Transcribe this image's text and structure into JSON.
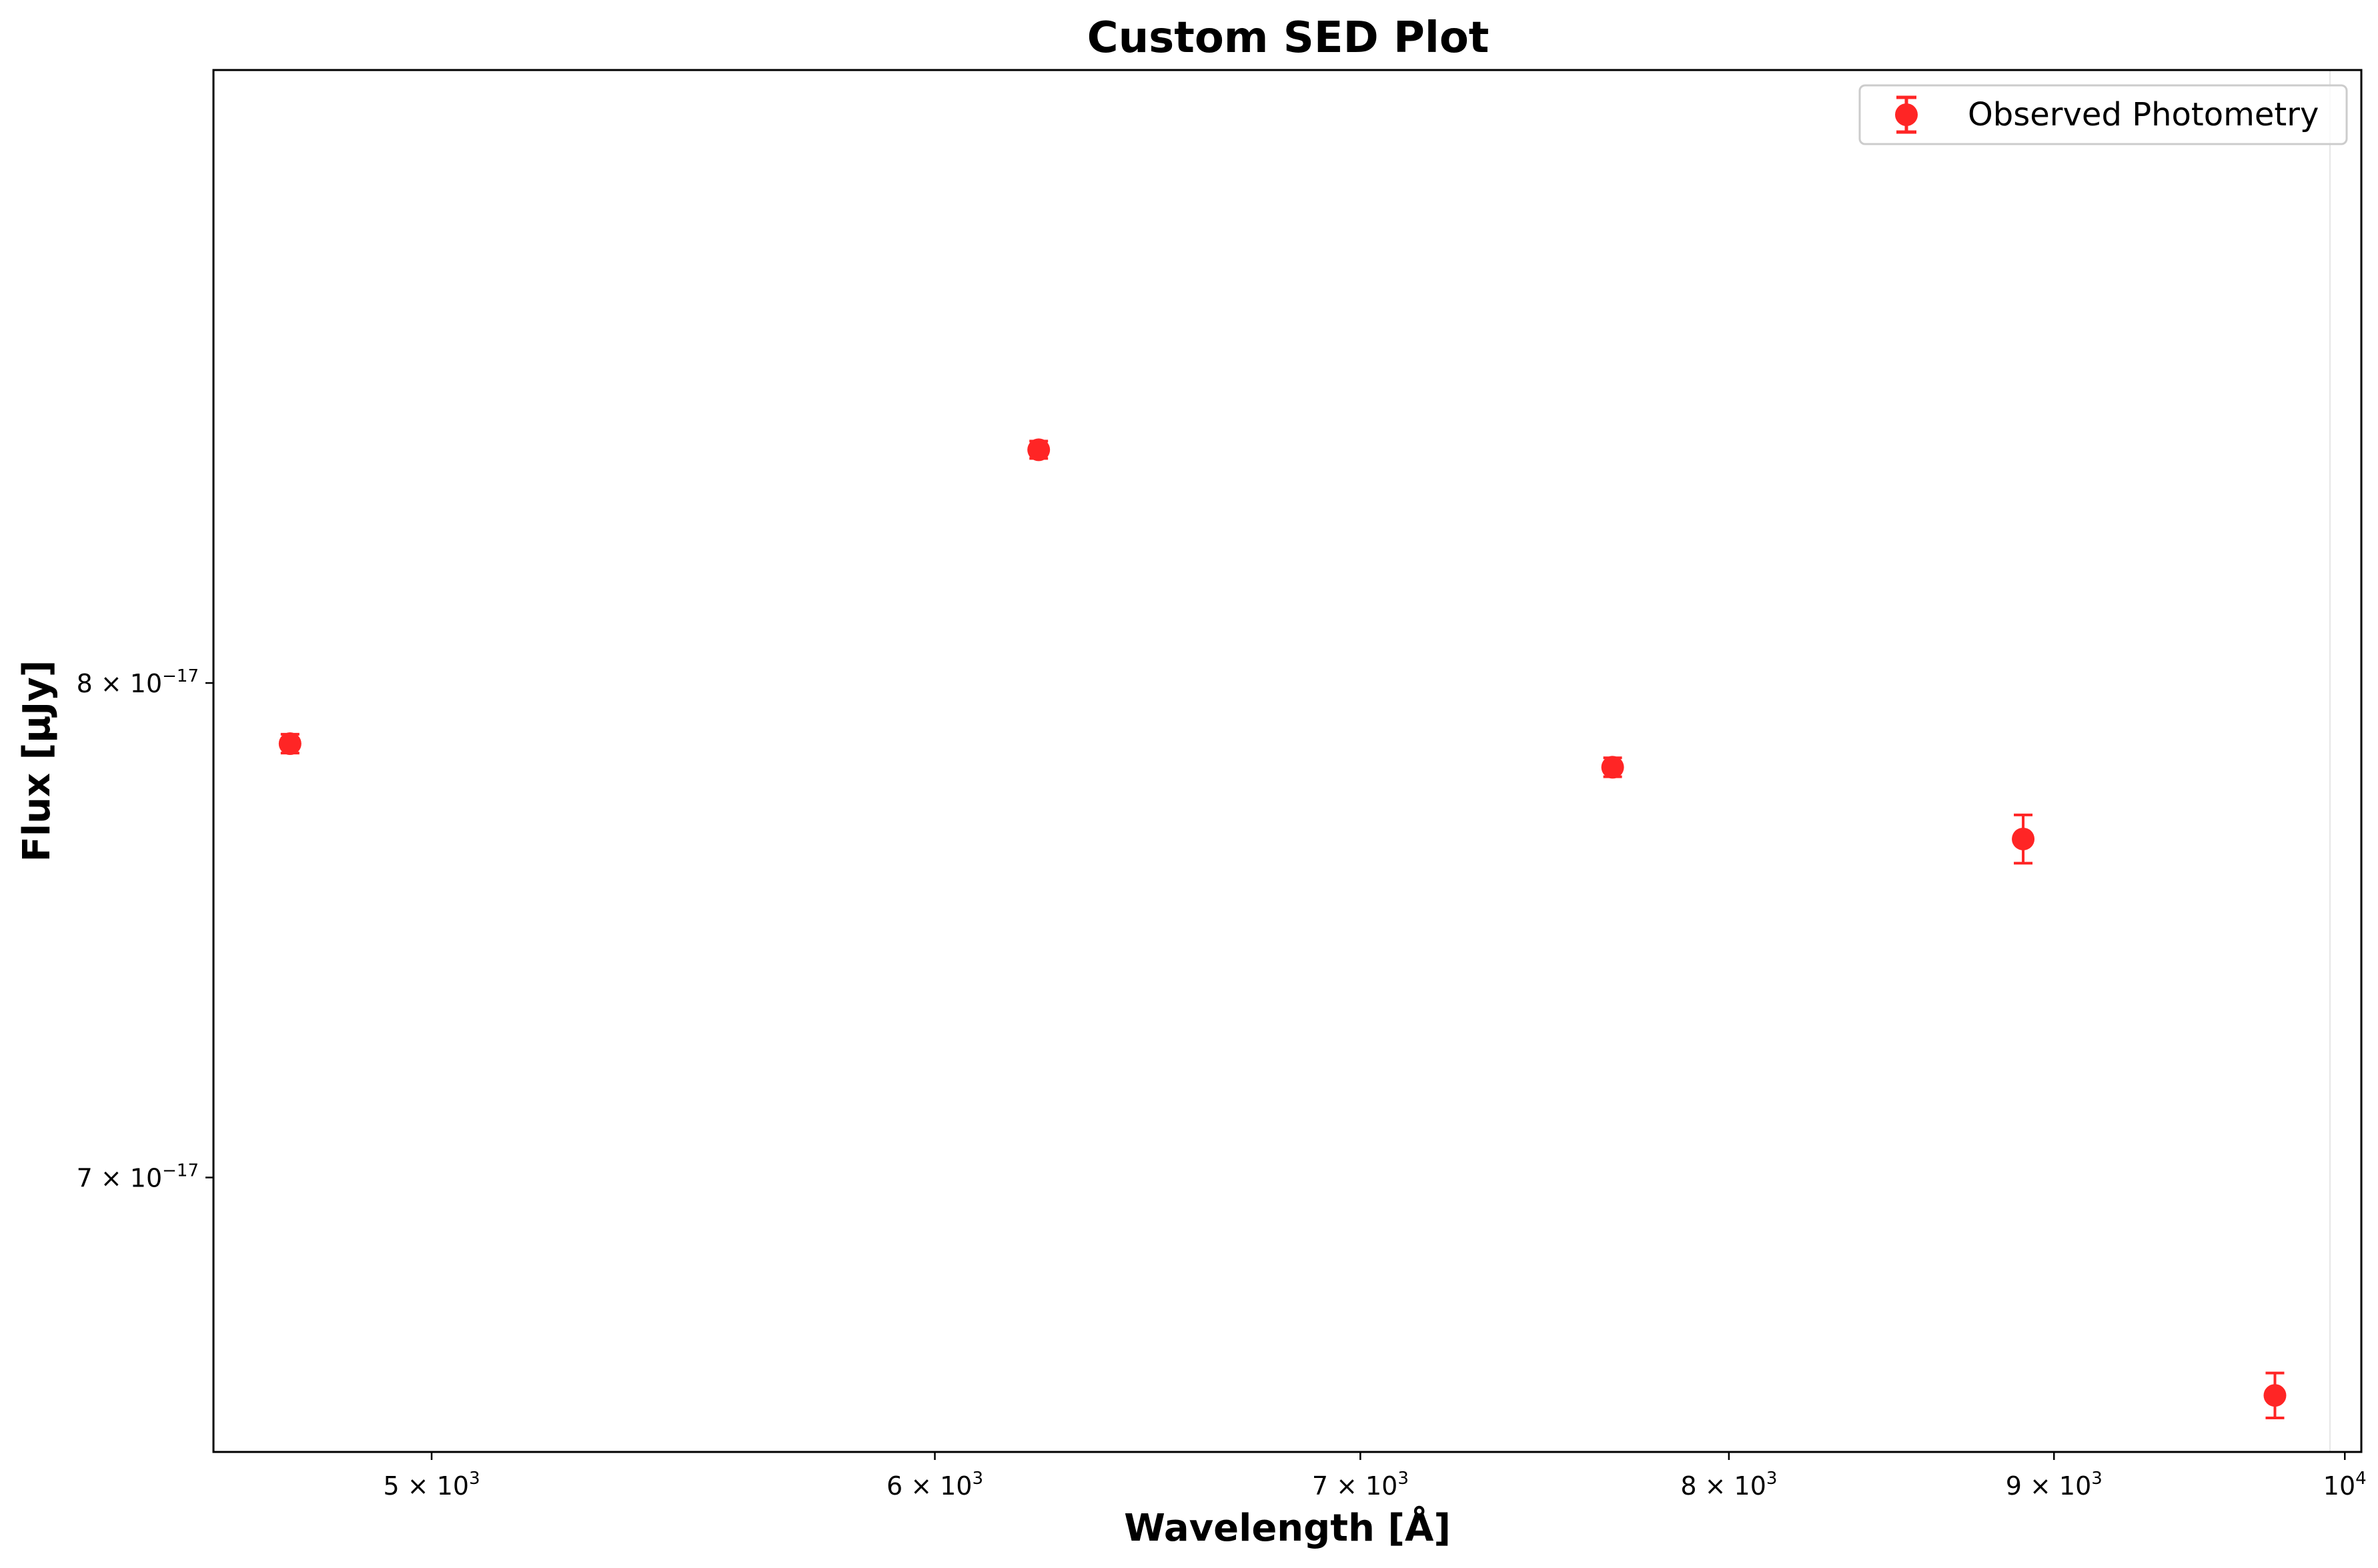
{
  "chart_data": {
    "type": "scatter",
    "title": "Custom SED Plot",
    "xlabel": "Wavelength [Å]",
    "ylabel": "Flux [μJy]",
    "xscale": "log",
    "yscale": "log",
    "xlim": [
      4620,
      10060
    ],
    "ylim": [
      6.5e-17,
      9.44e-17
    ],
    "xticks": [
      {
        "value": 5000,
        "label": "5 × 10",
        "exp": "3"
      },
      {
        "value": 6000,
        "label": "6 × 10",
        "exp": "3"
      },
      {
        "value": 7000,
        "label": "7 × 10",
        "exp": "3"
      },
      {
        "value": 8000,
        "label": "8 × 10",
        "exp": "3"
      },
      {
        "value": 9000,
        "label": "9 × 10",
        "exp": "3"
      },
      {
        "value": 10000,
        "label": "10",
        "exp": "4"
      }
    ],
    "yticks": [
      {
        "value": 8e-17,
        "label": "8 × 10",
        "exp": "−17"
      },
      {
        "value": 7e-17,
        "label": "7 × 10",
        "exp": "−17"
      }
    ],
    "grid": false,
    "legend_position": "upper right",
    "series": [
      {
        "name": "Observed Photometry",
        "color": "#ff0000",
        "marker": "circle",
        "x": [
          4750,
          6230,
          7670,
          8900,
          9750
        ],
        "y": [
          7.87e-17,
          8.52e-17,
          7.82e-17,
          7.67e-17,
          6.6e-17
        ],
        "yerr": [
          2e-19,
          2e-19,
          2e-19,
          5e-19,
          4e-19
        ]
      }
    ]
  }
}
